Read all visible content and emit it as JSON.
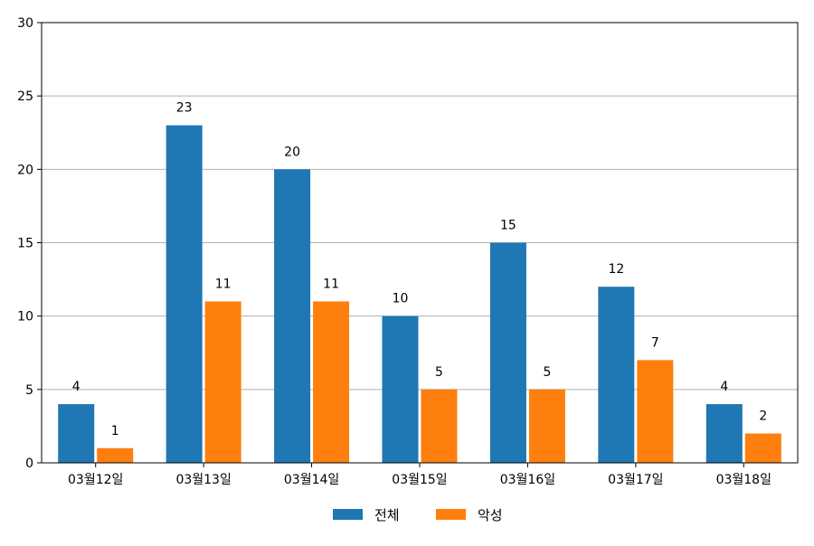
{
  "chart_data": {
    "type": "bar",
    "categories": [
      "03월12일",
      "03월13일",
      "03월14일",
      "03월15일",
      "03월16일",
      "03월17일",
      "03월18일"
    ],
    "series": [
      {
        "name": "전체",
        "values": [
          4,
          23,
          20,
          10,
          15,
          12,
          4
        ],
        "color": "#1f77b4"
      },
      {
        "name": "악성",
        "values": [
          1,
          11,
          11,
          5,
          5,
          7,
          2
        ],
        "color": "#ff7f0e"
      }
    ],
    "ylim": [
      0,
      30
    ],
    "yticks": [
      0,
      5,
      10,
      15,
      20,
      25,
      30
    ],
    "grid": "horizontal",
    "legend": "bottom-center",
    "data_labels": true
  }
}
